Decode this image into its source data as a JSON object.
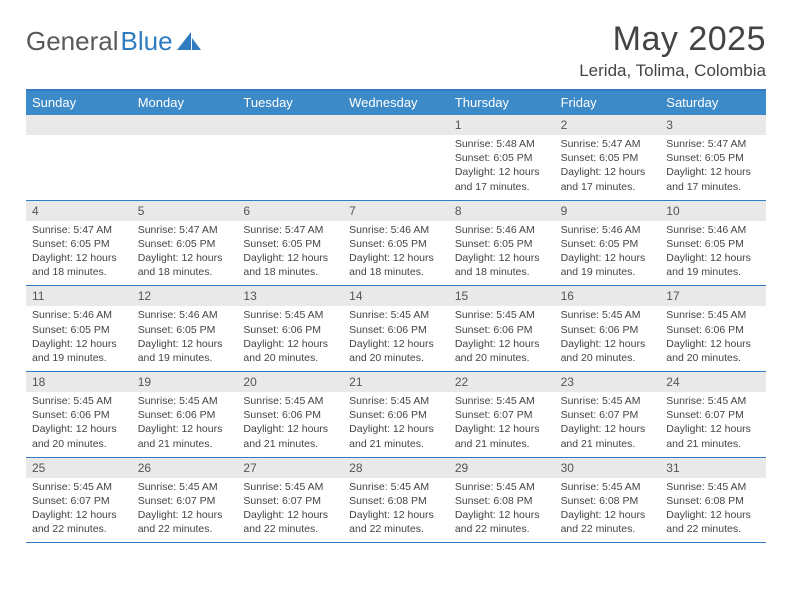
{
  "brand": {
    "part1": "General",
    "part2": "Blue"
  },
  "title": "May 2025",
  "location": "Lerida, Tolima, Colombia",
  "colors": {
    "header_bg": "#3d8ac9",
    "border": "#2f7dc0",
    "daynum_bg": "#e9e9e9",
    "text": "#444444",
    "logo_gray": "#5a5a5a",
    "logo_blue": "#2f7dc0"
  },
  "weekdays": [
    "Sunday",
    "Monday",
    "Tuesday",
    "Wednesday",
    "Thursday",
    "Friday",
    "Saturday"
  ],
  "weeks": [
    [
      {
        "num": "",
        "sunrise": "",
        "sunset": "",
        "daylight": ""
      },
      {
        "num": "",
        "sunrise": "",
        "sunset": "",
        "daylight": ""
      },
      {
        "num": "",
        "sunrise": "",
        "sunset": "",
        "daylight": ""
      },
      {
        "num": "",
        "sunrise": "",
        "sunset": "",
        "daylight": ""
      },
      {
        "num": "1",
        "sunrise": "Sunrise: 5:48 AM",
        "sunset": "Sunset: 6:05 PM",
        "daylight": "Daylight: 12 hours and 17 minutes."
      },
      {
        "num": "2",
        "sunrise": "Sunrise: 5:47 AM",
        "sunset": "Sunset: 6:05 PM",
        "daylight": "Daylight: 12 hours and 17 minutes."
      },
      {
        "num": "3",
        "sunrise": "Sunrise: 5:47 AM",
        "sunset": "Sunset: 6:05 PM",
        "daylight": "Daylight: 12 hours and 17 minutes."
      }
    ],
    [
      {
        "num": "4",
        "sunrise": "Sunrise: 5:47 AM",
        "sunset": "Sunset: 6:05 PM",
        "daylight": "Daylight: 12 hours and 18 minutes."
      },
      {
        "num": "5",
        "sunrise": "Sunrise: 5:47 AM",
        "sunset": "Sunset: 6:05 PM",
        "daylight": "Daylight: 12 hours and 18 minutes."
      },
      {
        "num": "6",
        "sunrise": "Sunrise: 5:47 AM",
        "sunset": "Sunset: 6:05 PM",
        "daylight": "Daylight: 12 hours and 18 minutes."
      },
      {
        "num": "7",
        "sunrise": "Sunrise: 5:46 AM",
        "sunset": "Sunset: 6:05 PM",
        "daylight": "Daylight: 12 hours and 18 minutes."
      },
      {
        "num": "8",
        "sunrise": "Sunrise: 5:46 AM",
        "sunset": "Sunset: 6:05 PM",
        "daylight": "Daylight: 12 hours and 18 minutes."
      },
      {
        "num": "9",
        "sunrise": "Sunrise: 5:46 AM",
        "sunset": "Sunset: 6:05 PM",
        "daylight": "Daylight: 12 hours and 19 minutes."
      },
      {
        "num": "10",
        "sunrise": "Sunrise: 5:46 AM",
        "sunset": "Sunset: 6:05 PM",
        "daylight": "Daylight: 12 hours and 19 minutes."
      }
    ],
    [
      {
        "num": "11",
        "sunrise": "Sunrise: 5:46 AM",
        "sunset": "Sunset: 6:05 PM",
        "daylight": "Daylight: 12 hours and 19 minutes."
      },
      {
        "num": "12",
        "sunrise": "Sunrise: 5:46 AM",
        "sunset": "Sunset: 6:05 PM",
        "daylight": "Daylight: 12 hours and 19 minutes."
      },
      {
        "num": "13",
        "sunrise": "Sunrise: 5:45 AM",
        "sunset": "Sunset: 6:06 PM",
        "daylight": "Daylight: 12 hours and 20 minutes."
      },
      {
        "num": "14",
        "sunrise": "Sunrise: 5:45 AM",
        "sunset": "Sunset: 6:06 PM",
        "daylight": "Daylight: 12 hours and 20 minutes."
      },
      {
        "num": "15",
        "sunrise": "Sunrise: 5:45 AM",
        "sunset": "Sunset: 6:06 PM",
        "daylight": "Daylight: 12 hours and 20 minutes."
      },
      {
        "num": "16",
        "sunrise": "Sunrise: 5:45 AM",
        "sunset": "Sunset: 6:06 PM",
        "daylight": "Daylight: 12 hours and 20 minutes."
      },
      {
        "num": "17",
        "sunrise": "Sunrise: 5:45 AM",
        "sunset": "Sunset: 6:06 PM",
        "daylight": "Daylight: 12 hours and 20 minutes."
      }
    ],
    [
      {
        "num": "18",
        "sunrise": "Sunrise: 5:45 AM",
        "sunset": "Sunset: 6:06 PM",
        "daylight": "Daylight: 12 hours and 20 minutes."
      },
      {
        "num": "19",
        "sunrise": "Sunrise: 5:45 AM",
        "sunset": "Sunset: 6:06 PM",
        "daylight": "Daylight: 12 hours and 21 minutes."
      },
      {
        "num": "20",
        "sunrise": "Sunrise: 5:45 AM",
        "sunset": "Sunset: 6:06 PM",
        "daylight": "Daylight: 12 hours and 21 minutes."
      },
      {
        "num": "21",
        "sunrise": "Sunrise: 5:45 AM",
        "sunset": "Sunset: 6:06 PM",
        "daylight": "Daylight: 12 hours and 21 minutes."
      },
      {
        "num": "22",
        "sunrise": "Sunrise: 5:45 AM",
        "sunset": "Sunset: 6:07 PM",
        "daylight": "Daylight: 12 hours and 21 minutes."
      },
      {
        "num": "23",
        "sunrise": "Sunrise: 5:45 AM",
        "sunset": "Sunset: 6:07 PM",
        "daylight": "Daylight: 12 hours and 21 minutes."
      },
      {
        "num": "24",
        "sunrise": "Sunrise: 5:45 AM",
        "sunset": "Sunset: 6:07 PM",
        "daylight": "Daylight: 12 hours and 21 minutes."
      }
    ],
    [
      {
        "num": "25",
        "sunrise": "Sunrise: 5:45 AM",
        "sunset": "Sunset: 6:07 PM",
        "daylight": "Daylight: 12 hours and 22 minutes."
      },
      {
        "num": "26",
        "sunrise": "Sunrise: 5:45 AM",
        "sunset": "Sunset: 6:07 PM",
        "daylight": "Daylight: 12 hours and 22 minutes."
      },
      {
        "num": "27",
        "sunrise": "Sunrise: 5:45 AM",
        "sunset": "Sunset: 6:07 PM",
        "daylight": "Daylight: 12 hours and 22 minutes."
      },
      {
        "num": "28",
        "sunrise": "Sunrise: 5:45 AM",
        "sunset": "Sunset: 6:08 PM",
        "daylight": "Daylight: 12 hours and 22 minutes."
      },
      {
        "num": "29",
        "sunrise": "Sunrise: 5:45 AM",
        "sunset": "Sunset: 6:08 PM",
        "daylight": "Daylight: 12 hours and 22 minutes."
      },
      {
        "num": "30",
        "sunrise": "Sunrise: 5:45 AM",
        "sunset": "Sunset: 6:08 PM",
        "daylight": "Daylight: 12 hours and 22 minutes."
      },
      {
        "num": "31",
        "sunrise": "Sunrise: 5:45 AM",
        "sunset": "Sunset: 6:08 PM",
        "daylight": "Daylight: 12 hours and 22 minutes."
      }
    ]
  ]
}
